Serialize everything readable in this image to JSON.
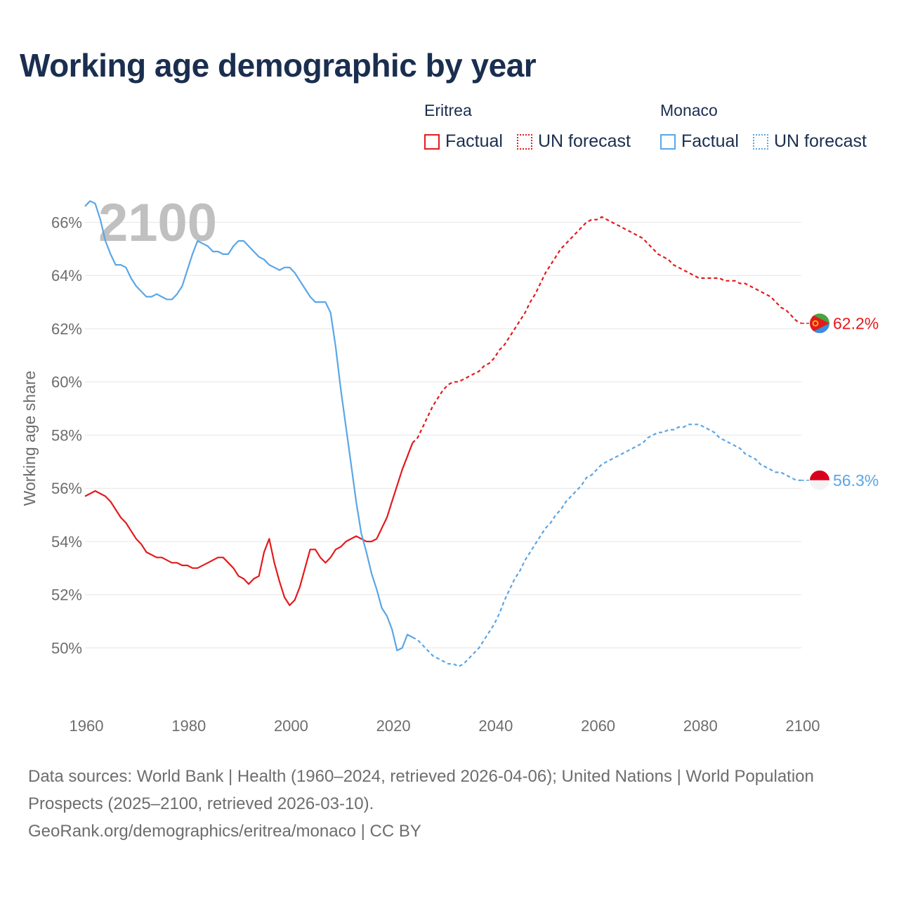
{
  "title": "Working age demographic by year",
  "legend": {
    "groups": [
      {
        "country": "Eritrea",
        "factual_label": "Factual",
        "forecast_label": "UN forecast",
        "color": "#e31a1c"
      },
      {
        "country": "Monaco",
        "factual_label": "Factual",
        "forecast_label": "UN forecast",
        "color": "#5aa6e6"
      }
    ]
  },
  "footer": {
    "sources": "Data sources: World Bank | Health (1960–2024, retrieved 2026-04-06); United Nations | World Population Prospects (2025–2100, retrieved 2026-03-10).",
    "credit": "GeoRank.org/demographics/eritrea/monaco | CC BY"
  },
  "chart_data": {
    "type": "line",
    "title": "Working age demographic by year",
    "year_label": "2100",
    "xlabel": "",
    "ylabel": "Working age share",
    "xlim": [
      1960,
      2100
    ],
    "ylim": [
      47.9,
      67.2
    ],
    "x_ticks": [
      1960,
      1980,
      2000,
      2020,
      2040,
      2060,
      2080,
      2100
    ],
    "y_ticks": [
      50,
      52,
      54,
      56,
      58,
      60,
      62,
      64,
      66
    ],
    "y_tick_labels": [
      "50%",
      "52%",
      "54%",
      "56%",
      "58%",
      "60%",
      "62%",
      "64%",
      "66%"
    ],
    "grid": true,
    "factual_end_year": 2024,
    "series": [
      {
        "name": "Eritrea",
        "color": "#e31a1c",
        "end_label": "62.2%",
        "flag": {
          "top": "#4aa33f",
          "bottom": "#3c8dde",
          "triangle": "#e31a1c",
          "emblem": "#f2c200"
        },
        "points": [
          [
            1960,
            55.7
          ],
          [
            1962,
            55.9
          ],
          [
            1964,
            55.7
          ],
          [
            1965,
            55.5
          ],
          [
            1966,
            55.2
          ],
          [
            1967,
            54.9
          ],
          [
            1968,
            54.7
          ],
          [
            1969,
            54.4
          ],
          [
            1970,
            54.1
          ],
          [
            1971,
            53.9
          ],
          [
            1972,
            53.6
          ],
          [
            1974,
            53.4
          ],
          [
            1975,
            53.4
          ],
          [
            1977,
            53.2
          ],
          [
            1978,
            53.2
          ],
          [
            1979,
            53.1
          ],
          [
            1980,
            53.1
          ],
          [
            1981,
            53.0
          ],
          [
            1982,
            53.0
          ],
          [
            1984,
            53.2
          ],
          [
            1986,
            53.4
          ],
          [
            1987,
            53.4
          ],
          [
            1989,
            53.0
          ],
          [
            1990,
            52.7
          ],
          [
            1991,
            52.6
          ],
          [
            1992,
            52.4
          ],
          [
            1993,
            52.6
          ],
          [
            1994,
            52.7
          ],
          [
            1995,
            53.6
          ],
          [
            1996,
            54.1
          ],
          [
            1997,
            53.2
          ],
          [
            1998,
            52.5
          ],
          [
            1999,
            51.9
          ],
          [
            2000,
            51.6
          ],
          [
            2001,
            51.8
          ],
          [
            2002,
            52.3
          ],
          [
            2003,
            53.0
          ],
          [
            2004,
            53.7
          ],
          [
            2005,
            53.7
          ],
          [
            2006,
            53.4
          ],
          [
            2007,
            53.2
          ],
          [
            2008,
            53.4
          ],
          [
            2009,
            53.7
          ],
          [
            2010,
            53.8
          ],
          [
            2011,
            54.0
          ],
          [
            2013,
            54.2
          ],
          [
            2014,
            54.1
          ],
          [
            2015,
            54.0
          ],
          [
            2016,
            54.0
          ],
          [
            2017,
            54.1
          ],
          [
            2018,
            54.5
          ],
          [
            2019,
            54.9
          ],
          [
            2020,
            55.5
          ],
          [
            2021,
            56.1
          ],
          [
            2022,
            56.7
          ],
          [
            2023,
            57.2
          ],
          [
            2024,
            57.7
          ],
          [
            2025,
            57.9
          ],
          [
            2026,
            58.3
          ],
          [
            2027,
            58.7
          ],
          [
            2028,
            59.1
          ],
          [
            2029,
            59.4
          ],
          [
            2030,
            59.7
          ],
          [
            2031,
            59.9
          ],
          [
            2032,
            60.0
          ],
          [
            2033,
            60.0
          ],
          [
            2034,
            60.1
          ],
          [
            2035,
            60.2
          ],
          [
            2036,
            60.3
          ],
          [
            2037,
            60.4
          ],
          [
            2038,
            60.6
          ],
          [
            2039,
            60.7
          ],
          [
            2040,
            60.9
          ],
          [
            2041,
            61.2
          ],
          [
            2042,
            61.4
          ],
          [
            2043,
            61.7
          ],
          [
            2044,
            62.0
          ],
          [
            2045,
            62.3
          ],
          [
            2046,
            62.6
          ],
          [
            2047,
            63.0
          ],
          [
            2048,
            63.3
          ],
          [
            2049,
            63.7
          ],
          [
            2050,
            64.1
          ],
          [
            2051,
            64.4
          ],
          [
            2052,
            64.7
          ],
          [
            2053,
            65.0
          ],
          [
            2054,
            65.2
          ],
          [
            2055,
            65.4
          ],
          [
            2056,
            65.6
          ],
          [
            2057,
            65.8
          ],
          [
            2058,
            66.0
          ],
          [
            2059,
            66.1
          ],
          [
            2060,
            66.1
          ],
          [
            2061,
            66.2
          ],
          [
            2062,
            66.1
          ],
          [
            2063,
            66.0
          ],
          [
            2064,
            65.9
          ],
          [
            2065,
            65.8
          ],
          [
            2066,
            65.7
          ],
          [
            2067,
            65.6
          ],
          [
            2068,
            65.5
          ],
          [
            2069,
            65.4
          ],
          [
            2070,
            65.2
          ],
          [
            2071,
            65.0
          ],
          [
            2072,
            64.8
          ],
          [
            2073,
            64.7
          ],
          [
            2074,
            64.6
          ],
          [
            2075,
            64.4
          ],
          [
            2076,
            64.3
          ],
          [
            2077,
            64.2
          ],
          [
            2078,
            64.1
          ],
          [
            2079,
            64.0
          ],
          [
            2080,
            63.9
          ],
          [
            2081,
            63.9
          ],
          [
            2082,
            63.9
          ],
          [
            2083,
            63.9
          ],
          [
            2084,
            63.9
          ],
          [
            2085,
            63.8
          ],
          [
            2086,
            63.8
          ],
          [
            2087,
            63.8
          ],
          [
            2088,
            63.7
          ],
          [
            2089,
            63.7
          ],
          [
            2090,
            63.6
          ],
          [
            2091,
            63.5
          ],
          [
            2092,
            63.4
          ],
          [
            2093,
            63.3
          ],
          [
            2094,
            63.2
          ],
          [
            2095,
            63.0
          ],
          [
            2096,
            62.8
          ],
          [
            2097,
            62.7
          ],
          [
            2098,
            62.5
          ],
          [
            2099,
            62.3
          ],
          [
            2100,
            62.2
          ]
        ]
      },
      {
        "name": "Monaco",
        "color": "#5aa6e6",
        "end_label": "56.3%",
        "flag": {
          "top": "#d8001c",
          "bottom": "#f3f3f3"
        },
        "points": [
          [
            1960,
            66.6
          ],
          [
            1961,
            66.8
          ],
          [
            1962,
            66.7
          ],
          [
            1963,
            66.1
          ],
          [
            1964,
            65.3
          ],
          [
            1965,
            64.8
          ],
          [
            1966,
            64.4
          ],
          [
            1967,
            64.4
          ],
          [
            1968,
            64.3
          ],
          [
            1969,
            63.9
          ],
          [
            1970,
            63.6
          ],
          [
            1971,
            63.4
          ],
          [
            1972,
            63.2
          ],
          [
            1973,
            63.2
          ],
          [
            1974,
            63.3
          ],
          [
            1975,
            63.2
          ],
          [
            1976,
            63.1
          ],
          [
            1977,
            63.1
          ],
          [
            1978,
            63.3
          ],
          [
            1979,
            63.6
          ],
          [
            1980,
            64.2
          ],
          [
            1981,
            64.8
          ],
          [
            1982,
            65.3
          ],
          [
            1983,
            65.2
          ],
          [
            1984,
            65.1
          ],
          [
            1985,
            64.9
          ],
          [
            1986,
            64.9
          ],
          [
            1987,
            64.8
          ],
          [
            1988,
            64.8
          ],
          [
            1989,
            65.1
          ],
          [
            1990,
            65.3
          ],
          [
            1991,
            65.3
          ],
          [
            1992,
            65.1
          ],
          [
            1993,
            64.9
          ],
          [
            1994,
            64.7
          ],
          [
            1995,
            64.6
          ],
          [
            1996,
            64.4
          ],
          [
            1997,
            64.3
          ],
          [
            1998,
            64.2
          ],
          [
            1999,
            64.3
          ],
          [
            2000,
            64.3
          ],
          [
            2001,
            64.1
          ],
          [
            2002,
            63.8
          ],
          [
            2003,
            63.5
          ],
          [
            2004,
            63.2
          ],
          [
            2005,
            63.0
          ],
          [
            2006,
            63.0
          ],
          [
            2007,
            63.0
          ],
          [
            2008,
            62.6
          ],
          [
            2009,
            61.3
          ],
          [
            2010,
            59.7
          ],
          [
            2011,
            58.3
          ],
          [
            2012,
            56.9
          ],
          [
            2013,
            55.5
          ],
          [
            2014,
            54.3
          ],
          [
            2015,
            53.6
          ],
          [
            2016,
            52.8
          ],
          [
            2017,
            52.2
          ],
          [
            2018,
            51.5
          ],
          [
            2019,
            51.2
          ],
          [
            2020,
            50.7
          ],
          [
            2021,
            49.9
          ],
          [
            2022,
            50.0
          ],
          [
            2023,
            50.5
          ],
          [
            2024,
            50.4
          ],
          [
            2025,
            50.3
          ],
          [
            2026,
            50.1
          ],
          [
            2027,
            49.9
          ],
          [
            2028,
            49.7
          ],
          [
            2029,
            49.6
          ],
          [
            2030,
            49.5
          ],
          [
            2031,
            49.4
          ],
          [
            2032,
            49.4
          ],
          [
            2033,
            49.3
          ],
          [
            2034,
            49.4
          ],
          [
            2035,
            49.6
          ],
          [
            2036,
            49.8
          ],
          [
            2037,
            50.0
          ],
          [
            2038,
            50.3
          ],
          [
            2039,
            50.6
          ],
          [
            2040,
            50.9
          ],
          [
            2041,
            51.3
          ],
          [
            2042,
            51.8
          ],
          [
            2043,
            52.2
          ],
          [
            2044,
            52.6
          ],
          [
            2045,
            52.9
          ],
          [
            2046,
            53.3
          ],
          [
            2047,
            53.6
          ],
          [
            2048,
            53.9
          ],
          [
            2049,
            54.2
          ],
          [
            2050,
            54.5
          ],
          [
            2051,
            54.7
          ],
          [
            2052,
            55.0
          ],
          [
            2053,
            55.2
          ],
          [
            2054,
            55.5
          ],
          [
            2055,
            55.7
          ],
          [
            2056,
            55.9
          ],
          [
            2057,
            56.1
          ],
          [
            2058,
            56.4
          ],
          [
            2059,
            56.5
          ],
          [
            2060,
            56.7
          ],
          [
            2061,
            56.9
          ],
          [
            2062,
            57.0
          ],
          [
            2063,
            57.1
          ],
          [
            2064,
            57.2
          ],
          [
            2065,
            57.3
          ],
          [
            2066,
            57.4
          ],
          [
            2067,
            57.5
          ],
          [
            2068,
            57.6
          ],
          [
            2069,
            57.7
          ],
          [
            2070,
            57.9
          ],
          [
            2071,
            58.0
          ],
          [
            2072,
            58.1
          ],
          [
            2073,
            58.1
          ],
          [
            2074,
            58.2
          ],
          [
            2075,
            58.2
          ],
          [
            2076,
            58.3
          ],
          [
            2077,
            58.3
          ],
          [
            2078,
            58.4
          ],
          [
            2079,
            58.4
          ],
          [
            2080,
            58.4
          ],
          [
            2081,
            58.3
          ],
          [
            2082,
            58.2
          ],
          [
            2083,
            58.1
          ],
          [
            2084,
            57.9
          ],
          [
            2085,
            57.8
          ],
          [
            2086,
            57.7
          ],
          [
            2087,
            57.6
          ],
          [
            2088,
            57.5
          ],
          [
            2089,
            57.3
          ],
          [
            2090,
            57.2
          ],
          [
            2091,
            57.1
          ],
          [
            2092,
            56.9
          ],
          [
            2093,
            56.8
          ],
          [
            2094,
            56.7
          ],
          [
            2095,
            56.6
          ],
          [
            2096,
            56.6
          ],
          [
            2097,
            56.5
          ],
          [
            2098,
            56.4
          ],
          [
            2099,
            56.3
          ],
          [
            2100,
            56.3
          ]
        ]
      }
    ]
  }
}
